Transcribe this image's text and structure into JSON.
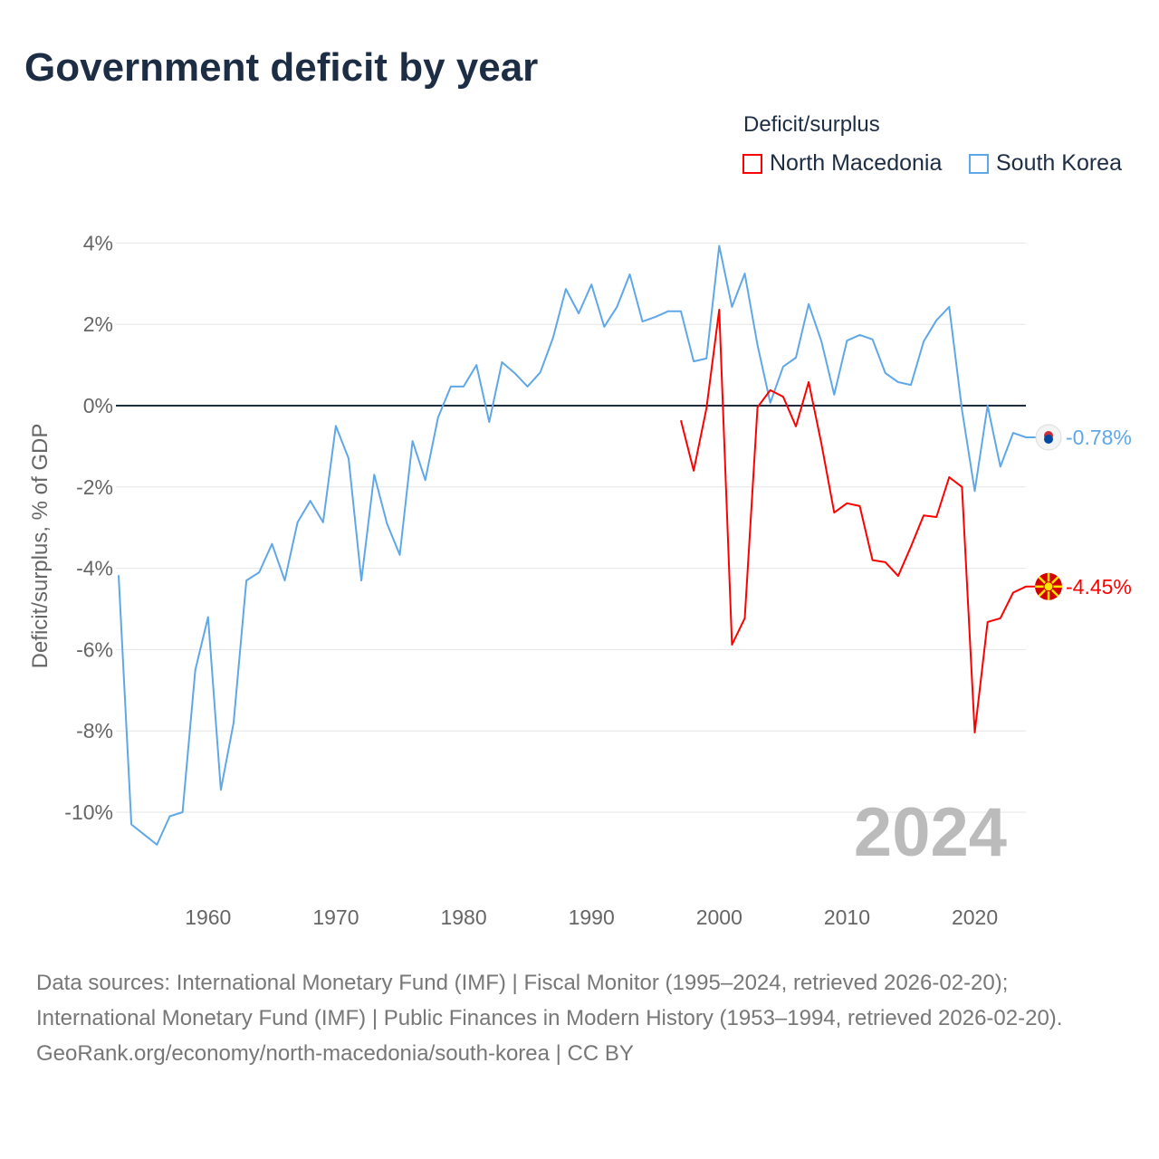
{
  "title": "Government deficit by year",
  "legend": {
    "title": "Deficit/surplus",
    "items": [
      {
        "name": "North Macedonia",
        "color": "#ff0000"
      },
      {
        "name": "South Korea",
        "color": "#5fa8e8"
      }
    ]
  },
  "year_label": "2024",
  "footer": {
    "sources": "Data sources: International Monetary Fund (IMF) | Fiscal Monitor (1995–2024, retrieved 2026-02-20); International Monetary Fund (IMF) | Public Finances in Modern History (1953–1994, retrieved 2026-02-20).",
    "url": "GeoRank.org/economy/north-macedonia/south-korea | CC BY"
  },
  "chart_data": {
    "type": "line",
    "title": "Government deficit by year",
    "xlabel": "",
    "ylabel": "Deficit/surplus, % of GDP",
    "xlim": [
      1953,
      2024
    ],
    "ylim": [
      -11,
      4
    ],
    "x_ticks": [
      1960,
      1970,
      1980,
      1990,
      2000,
      2010,
      2020
    ],
    "x_tick_labels": [
      "1960",
      "1970",
      "1980",
      "1990",
      "2000",
      "2010",
      "2020"
    ],
    "y_ticks": [
      4,
      2,
      0,
      -2,
      -4,
      -6,
      -8,
      -10
    ],
    "y_tick_labels": [
      "4%",
      "2%",
      "0%",
      "-2%",
      "-4%",
      "-6%",
      "-8%",
      "-10%"
    ],
    "grid": true,
    "legend_position": "top-right",
    "series": [
      {
        "name": "South Korea",
        "color": "#5fa8e8",
        "end_label": "-0.78%",
        "start_year": 1953,
        "values": [
          -4.17,
          -10.3,
          -10.55,
          -10.8,
          -10.1,
          -10.0,
          -6.5,
          -5.2,
          -9.45,
          -7.8,
          -4.3,
          -4.1,
          -3.4,
          -4.3,
          -2.87,
          -2.34,
          -2.87,
          -0.5,
          -1.3,
          -4.3,
          -1.7,
          -2.9,
          -3.67,
          -0.87,
          -1.83,
          -0.29,
          0.47,
          0.47,
          1.0,
          -0.4,
          1.07,
          0.8,
          0.47,
          0.82,
          1.67,
          2.87,
          2.27,
          2.98,
          1.94,
          2.43,
          3.23,
          2.07,
          2.18,
          2.32,
          2.32,
          1.09,
          1.16,
          3.93,
          2.43,
          3.25,
          1.49,
          0.07,
          0.96,
          1.18,
          2.5,
          1.58,
          0.27,
          1.6,
          1.74,
          1.63,
          0.8,
          0.58,
          0.51,
          1.58,
          2.1,
          2.43,
          -0.1,
          -2.1,
          0.0,
          -1.5,
          -0.67,
          -0.78
        ]
      },
      {
        "name": "North Macedonia",
        "color": "#ff0000",
        "end_label": "-4.45%",
        "start_year": 1997,
        "values": [
          -0.36,
          -1.6,
          -0.07,
          2.36,
          -5.88,
          -5.23,
          -0.04,
          0.38,
          0.22,
          -0.51,
          0.58,
          -0.94,
          -2.63,
          -2.4,
          -2.47,
          -3.8,
          -3.85,
          -4.19,
          -3.47,
          -2.7,
          -2.74,
          -1.76,
          -2.0,
          -8.04,
          -5.32,
          -5.23,
          -4.6,
          -4.45
        ]
      }
    ]
  }
}
